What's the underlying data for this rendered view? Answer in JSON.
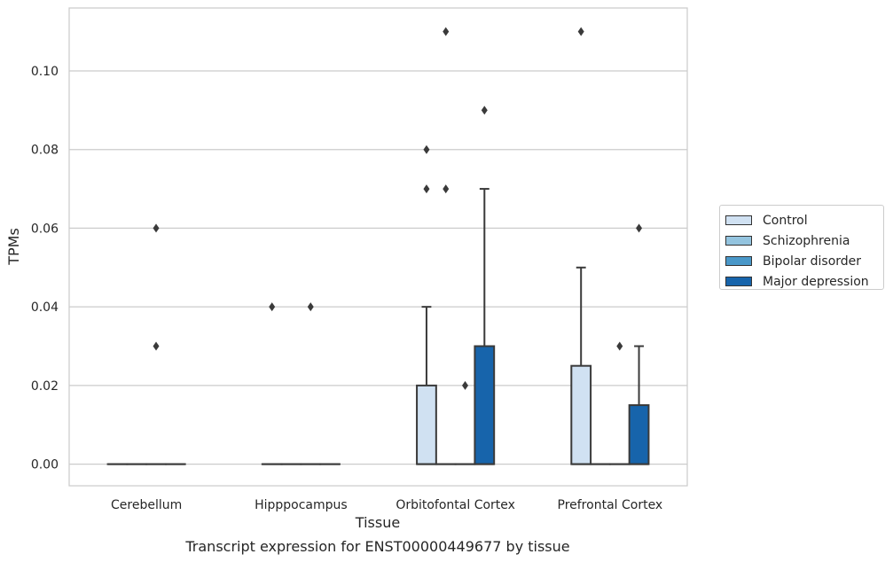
{
  "chart_data": {
    "type": "box",
    "title": "",
    "caption": "Transcript expression for ENST00000449677 by tissue",
    "xlabel": "Tissue",
    "ylabel": "TPMs",
    "ylim": [
      -0.0055,
      0.116
    ],
    "yticks": [
      "0.00",
      "0.02",
      "0.04",
      "0.06",
      "0.08",
      "0.10"
    ],
    "grid": "horizontal",
    "legend_position": "right",
    "categories": [
      "Cerebellum",
      "Hipppocampus",
      "Orbitofontal Cortex",
      "Prefrontal Cortex"
    ],
    "series": [
      {
        "name": "Control",
        "color": "#d0e1f2",
        "boxes": [
          {
            "q1": 0,
            "median": 0,
            "q3": 0,
            "whisker_low": 0,
            "whisker_high": 0,
            "outliers": []
          },
          {
            "q1": 0,
            "median": 0,
            "q3": 0,
            "whisker_low": 0,
            "whisker_high": 0,
            "outliers": [
              0.04
            ]
          },
          {
            "q1": 0,
            "median": 0,
            "q3": 0.02,
            "whisker_low": 0,
            "whisker_high": 0.04,
            "outliers": [
              0.08,
              0.07
            ]
          },
          {
            "q1": 0,
            "median": 0,
            "q3": 0.025,
            "whisker_low": 0,
            "whisker_high": 0.05,
            "outliers": [
              0.11
            ]
          }
        ]
      },
      {
        "name": "Schizophrenia",
        "color": "#94c4df",
        "boxes": [
          {
            "q1": 0,
            "median": 0,
            "q3": 0,
            "whisker_low": 0,
            "whisker_high": 0,
            "outliers": []
          },
          {
            "q1": 0,
            "median": 0,
            "q3": 0,
            "whisker_low": 0,
            "whisker_high": 0,
            "outliers": []
          },
          {
            "q1": 0,
            "median": 0,
            "q3": 0,
            "whisker_low": 0,
            "whisker_high": 0,
            "outliers": [
              0.11,
              0.07
            ]
          },
          {
            "q1": 0,
            "median": 0,
            "q3": 0,
            "whisker_low": 0,
            "whisker_high": 0,
            "outliers": []
          }
        ]
      },
      {
        "name": "Bipolar disorder",
        "color": "#4a98c9",
        "boxes": [
          {
            "q1": 0,
            "median": 0,
            "q3": 0,
            "whisker_low": 0,
            "whisker_high": 0,
            "outliers": [
              0.06,
              0.03
            ]
          },
          {
            "q1": 0,
            "median": 0,
            "q3": 0,
            "whisker_low": 0,
            "whisker_high": 0,
            "outliers": [
              0.04
            ]
          },
          {
            "q1": 0,
            "median": 0,
            "q3": 0,
            "whisker_low": 0,
            "whisker_high": 0,
            "outliers": [
              0.02
            ]
          },
          {
            "q1": 0,
            "median": 0,
            "q3": 0,
            "whisker_low": 0,
            "whisker_high": 0,
            "outliers": [
              0.03
            ]
          }
        ]
      },
      {
        "name": "Major depression",
        "color": "#1764ab",
        "boxes": [
          {
            "q1": 0,
            "median": 0,
            "q3": 0,
            "whisker_low": 0,
            "whisker_high": 0,
            "outliers": []
          },
          {
            "q1": 0,
            "median": 0,
            "q3": 0,
            "whisker_low": 0,
            "whisker_high": 0,
            "outliers": []
          },
          {
            "q1": 0,
            "median": 0,
            "q3": 0.03,
            "whisker_low": 0,
            "whisker_high": 0.07,
            "outliers": [
              0.09
            ]
          },
          {
            "q1": 0,
            "median": 0,
            "q3": 0.015,
            "whisker_low": 0,
            "whisker_high": 0.03,
            "outliers": [
              0.06
            ]
          }
        ]
      }
    ]
  }
}
